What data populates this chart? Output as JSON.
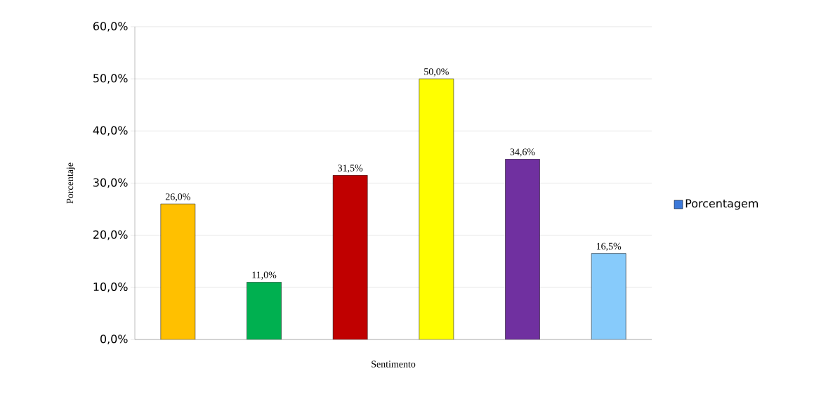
{
  "chart_data": {
    "type": "bar",
    "xlabel": "Sentimento",
    "ylabel": "Porcentaje",
    "categories": [
      null,
      null,
      null,
      null,
      null,
      null
    ],
    "series": [
      {
        "name": "Porcentagem",
        "color": "#3c78d8",
        "colors": [
          "#ffc000",
          "#00b050",
          "#c00000",
          "#ffff00",
          "#7030a0",
          "#87cbfb"
        ],
        "values": [
          26.0,
          11.0,
          31.5,
          50.0,
          34.6,
          16.5
        ],
        "value_labels": [
          "26,0%",
          "11,0%",
          "31,5%",
          "50,0%",
          "34,6%",
          "16,5%"
        ]
      }
    ],
    "ylim": [
      0,
      60
    ],
    "yticks": [
      {
        "value": 0,
        "label": "0,0%"
      },
      {
        "value": 10,
        "label": "10,0%"
      },
      {
        "value": 20,
        "label": "20,0%"
      },
      {
        "value": 30,
        "label": "30,0%"
      },
      {
        "value": 40,
        "label": "40,0%"
      },
      {
        "value": 50,
        "label": "50,0%"
      },
      {
        "value": 60,
        "label": "60,0%"
      }
    ],
    "grid": "y",
    "legend": "right"
  }
}
